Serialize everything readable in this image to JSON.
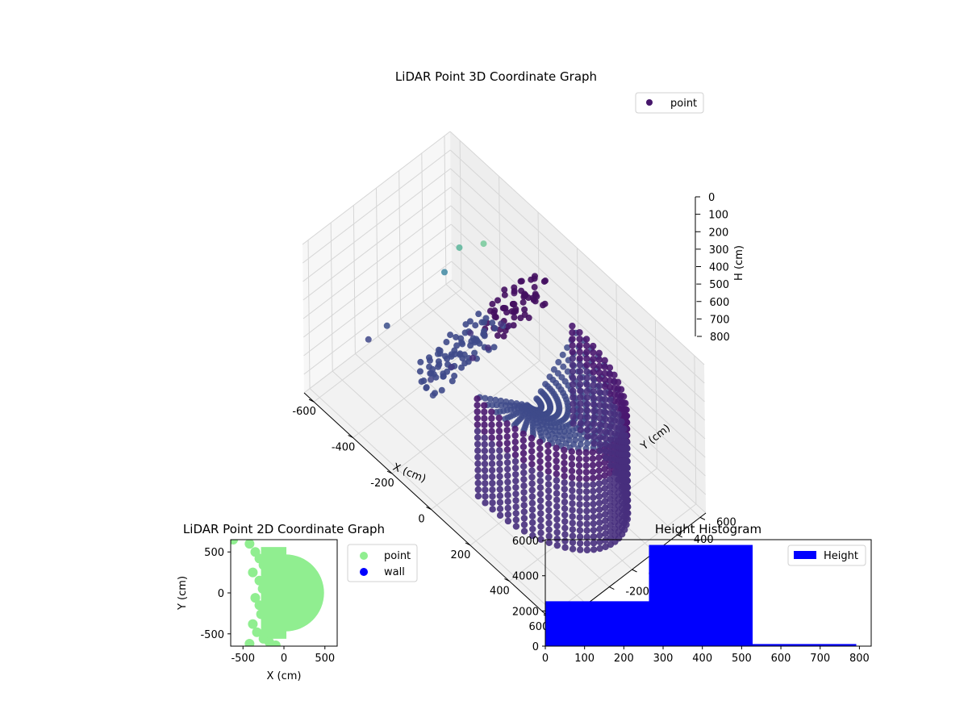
{
  "chart_data": [
    {
      "type": "scatter",
      "projection": "3d",
      "title": "LiDAR Point 3D Coordinate Graph",
      "xlabel": "X (cm)",
      "ylabel": "Y (cm)",
      "zlabel": "H (cm)",
      "xlim": [
        -650,
        650
      ],
      "ylim": [
        -650,
        650
      ],
      "zlim": [
        0,
        800
      ],
      "zinverted": true,
      "xticks": [
        -600,
        -400,
        -200,
        0,
        200,
        400,
        600
      ],
      "yticks": [
        -600,
        -400,
        -200,
        0,
        200,
        400,
        600
      ],
      "zticks": [
        0,
        100,
        200,
        300,
        400,
        500,
        600,
        700,
        800
      ],
      "grid": true,
      "legend": {
        "position": "top-right",
        "entries": [
          {
            "label": "point",
            "color": "#46166b"
          }
        ]
      },
      "colormap": "viridis",
      "series": [
        {
          "name": "point",
          "wall": {
            "radius": 420,
            "angle_range_deg": [
              -95,
              95
            ],
            "height_range": [
              250,
              800
            ],
            "color": "#472f7d"
          },
          "floor_fan": {
            "height": 450,
            "color": "#3e4a89"
          },
          "points": [
            [
              -650,
              80,
              780,
              "#3a4e8a"
            ],
            [
              -640,
              -100,
              760,
              "#3f4788"
            ],
            [
              -520,
              500,
              430,
              "#5ab59a"
            ],
            [
              -430,
              560,
              350,
              "#76c99a"
            ],
            [
              -480,
              300,
              430,
              "#3f88a2"
            ],
            [
              -400,
              100,
              700,
              "#3d4a89"
            ],
            [
              -300,
              50,
              650,
              "#423a84"
            ],
            [
              -250,
              150,
              600,
              "#472c7a"
            ],
            [
              -200,
              200,
              520,
              "#46307e"
            ],
            [
              -150,
              300,
              400,
              "#481b6d"
            ],
            [
              -350,
              -50,
              720,
              "#414487"
            ],
            [
              -280,
              -150,
              690,
              "#3f4a8a"
            ],
            [
              -180,
              400,
              300,
              "#471063"
            ],
            [
              -100,
              450,
              250,
              "#440f61"
            ],
            [
              -320,
              250,
              580,
              "#453781"
            ],
            [
              -220,
              350,
              480,
              "#46317e"
            ]
          ]
        }
      ]
    },
    {
      "type": "scatter",
      "title": "LiDAR Point 2D Coordinate Graph",
      "xlabel": "X (cm)",
      "ylabel": "Y (cm)",
      "xlim": [
        -650,
        650
      ],
      "ylim": [
        -650,
        650
      ],
      "xticks": [
        -500,
        0,
        500
      ],
      "yticks": [
        -500,
        0,
        500
      ],
      "legend": {
        "position": "outside-right",
        "entries": [
          {
            "label": "point",
            "color": "#90ee90"
          },
          {
            "label": "wall",
            "color": "#0000ff"
          }
        ]
      },
      "series": [
        {
          "name": "point",
          "color": "#90ee90",
          "shape": "half-disc",
          "radius": 470,
          "center": [
            20,
            0
          ],
          "scatter": [
            [
              -620,
              650
            ],
            [
              -420,
              600
            ],
            [
              -350,
              500
            ],
            [
              -300,
              420
            ],
            [
              -250,
              340
            ],
            [
              -380,
              250
            ],
            [
              -300,
              150
            ],
            [
              -260,
              50
            ],
            [
              -350,
              -60
            ],
            [
              -300,
              -150
            ],
            [
              -280,
              -260
            ],
            [
              -380,
              -380
            ],
            [
              -330,
              -480
            ],
            [
              -250,
              -560
            ],
            [
              -420,
              -620
            ],
            [
              -180,
              -600
            ],
            [
              -100,
              -640
            ]
          ]
        },
        {
          "name": "wall",
          "color": "#0000ff",
          "scatter": []
        }
      ]
    },
    {
      "type": "histogram",
      "title": "Height Histogram",
      "xlabel": "",
      "ylabel": "",
      "bins": [
        0,
        264,
        528,
        792
      ],
      "counts": [
        2550,
        5750,
        120
      ],
      "color": "#0000ff",
      "xlim": [
        0,
        830
      ],
      "ylim": [
        0,
        6050
      ],
      "xticks": [
        0,
        100,
        200,
        300,
        400,
        500,
        600,
        700,
        800
      ],
      "yticks": [
        0,
        2000,
        4000,
        6000
      ],
      "legend": {
        "position": "top-right",
        "entries": [
          {
            "label": "Height",
            "color": "#0000ff"
          }
        ]
      }
    }
  ]
}
